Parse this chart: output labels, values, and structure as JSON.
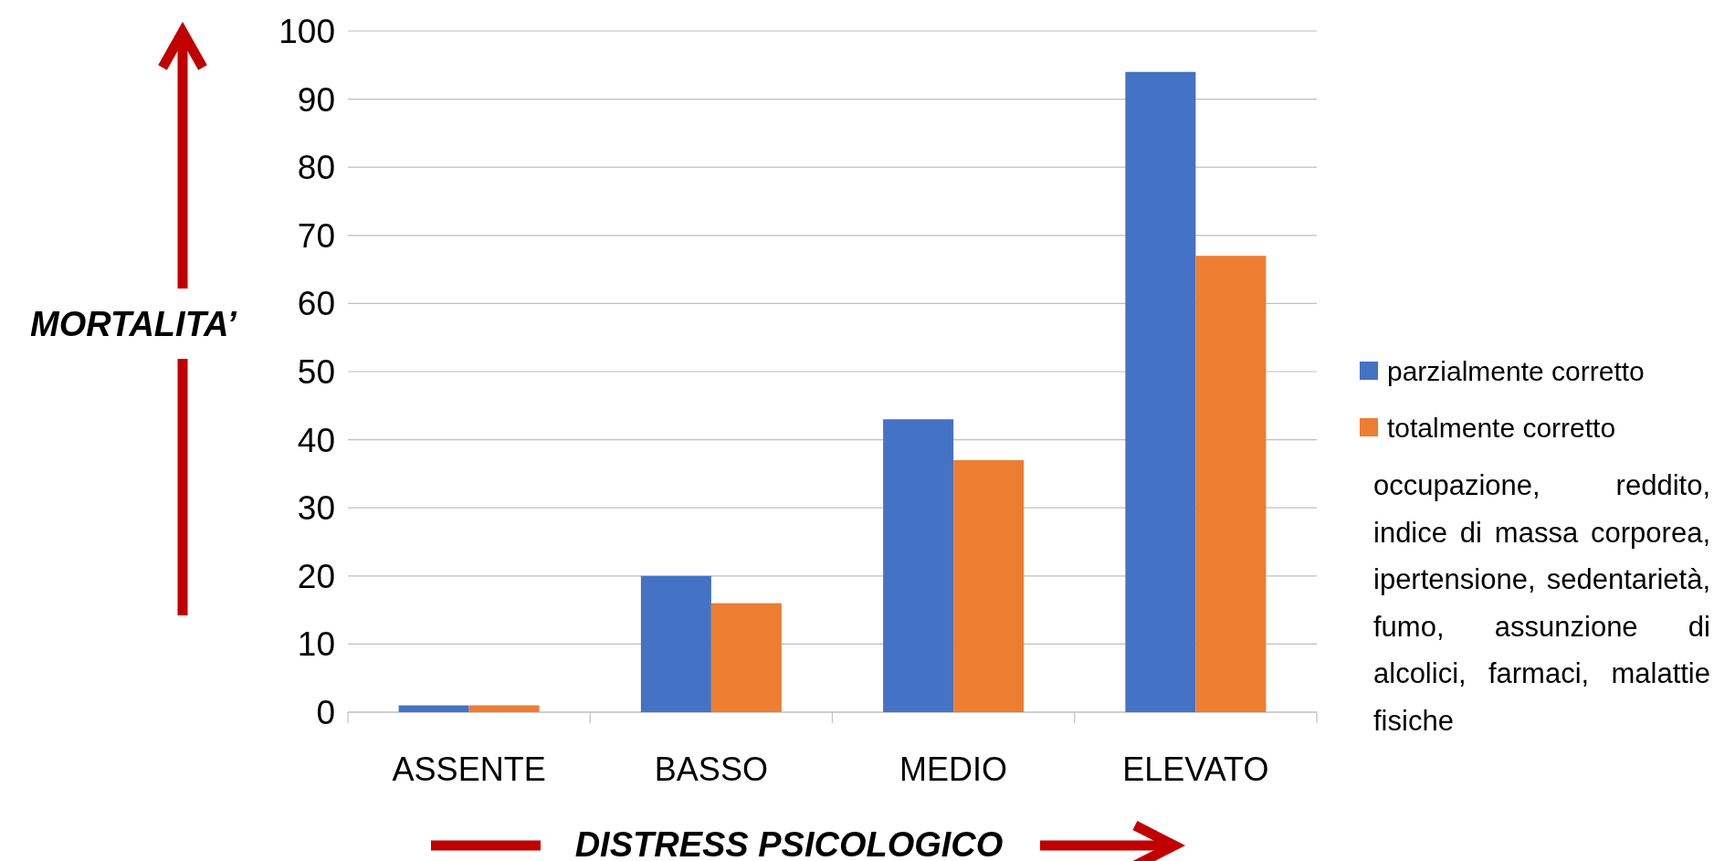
{
  "chart_data": {
    "type": "bar",
    "xlabel": "DISTRESS PSICOLOGICO",
    "ylabel": "MORTALITA’",
    "categories": [
      "ASSENTE",
      "BASSO",
      "MEDIO",
      "ELEVATO"
    ],
    "series": [
      {
        "name": "parzialmente corretto",
        "color": "#4472c4",
        "values": [
          1,
          20,
          43,
          94
        ]
      },
      {
        "name": "totalmente corretto",
        "color": "#ed7d31",
        "values": [
          1,
          16,
          37,
          67
        ]
      }
    ],
    "ylim": [
      0,
      100
    ],
    "yticks": [
      0,
      10,
      20,
      30,
      40,
      50,
      60,
      70,
      80,
      90,
      100
    ],
    "grid": "y",
    "legend": "right",
    "annotations": [
      "occupazione, reddito, indice di massa corporea, ipertensione, sedentarietà, fumo, assunzione di alcolici, farmaci, malattie fisiche"
    ]
  }
}
